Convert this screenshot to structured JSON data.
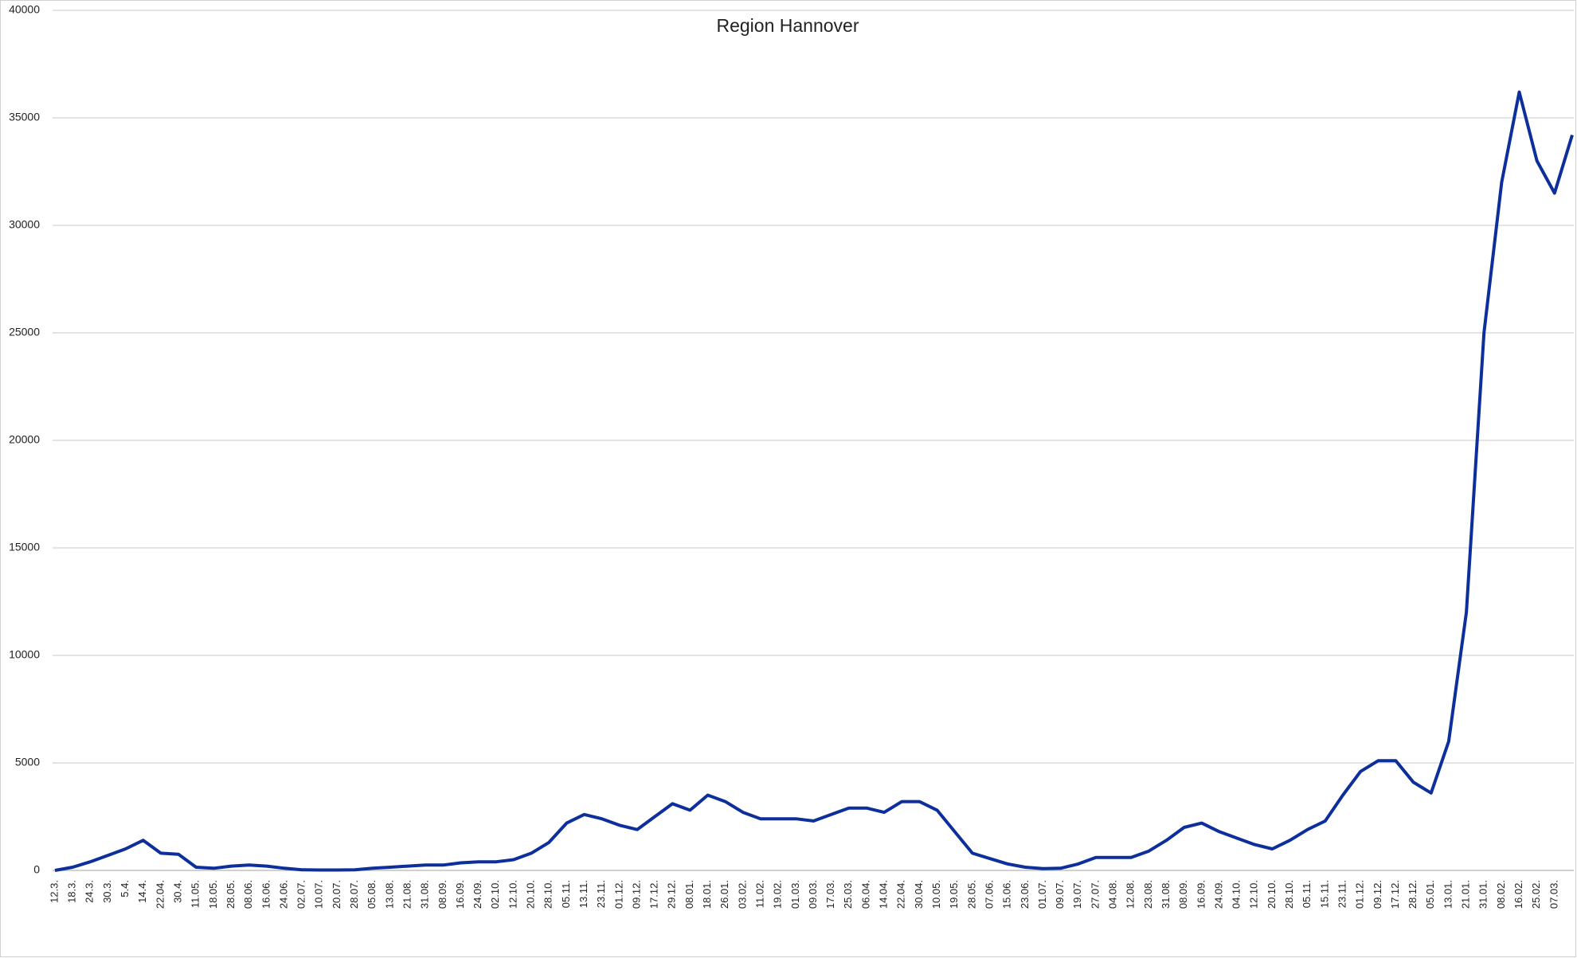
{
  "chart_data": {
    "type": "line",
    "title": "Region Hannover",
    "categories": [
      "12.3.",
      "18.3.",
      "24.3.",
      "30.3.",
      "5.4.",
      "14.4.",
      "22.04.",
      "30.4.",
      "11.05.",
      "18.05.",
      "28.05.",
      "08.06.",
      "16.06.",
      "24.06.",
      "02.07.",
      "10.07.",
      "20.07.",
      "28.07.",
      "05.08.",
      "13.08.",
      "21.08.",
      "31.08.",
      "08.09.",
      "16.09.",
      "24.09.",
      "02.10.",
      "12.10.",
      "20.10.",
      "28.10.",
      "05.11.",
      "13.11.",
      "23.11.",
      "01.12.",
      "09.12.",
      "17.12.",
      "29.12.",
      "08.01.",
      "18.01.",
      "26.01.",
      "03.02.",
      "11.02.",
      "19.02.",
      "01.03.",
      "09.03.",
      "17.03.",
      "25.03.",
      "06.04.",
      "14.04.",
      "22.04.",
      "30.04.",
      "10.05.",
      "19.05.",
      "28.05.",
      "07.06.",
      "15.06.",
      "23.06.",
      "01.07.",
      "09.07.",
      "19.07.",
      "27.07.",
      "04.08.",
      "12.08.",
      "23.08.",
      "31.08.",
      "08.09.",
      "16.09.",
      "24.09.",
      "04.10.",
      "12.10.",
      "20.10.",
      "28.10.",
      "05.11.",
      "15.11.",
      "23.11.",
      "01.12.",
      "09.12.",
      "17.12.",
      "28.12.",
      "05.01.",
      "13.01.",
      "21.01.",
      "31.01.",
      "08.02.",
      "16.02.",
      "25.02.",
      "07.03.",
      null
    ],
    "series": [
      {
        "name": "Region Hannover",
        "color": "#0d2f9c",
        "values": [
          0,
          150,
          400,
          700,
          1000,
          1400,
          800,
          750,
          150,
          100,
          200,
          250,
          200,
          100,
          30,
          20,
          20,
          30,
          100,
          150,
          200,
          250,
          250,
          350,
          400,
          400,
          500,
          800,
          1300,
          2200,
          2600,
          2400,
          2100,
          1900,
          2500,
          3100,
          2800,
          3500,
          3200,
          2700,
          2400,
          2400,
          2400,
          2300,
          2600,
          2900,
          2900,
          2700,
          3200,
          3200,
          2800,
          1800,
          800,
          550,
          300,
          150,
          80,
          100,
          300,
          600,
          600,
          600,
          900,
          1400,
          2000,
          2200,
          1800,
          1500,
          1200,
          1000,
          1400,
          1900,
          2300,
          3500,
          4600,
          5100,
          5100,
          4100,
          3600,
          6000,
          12000,
          25000,
          32000,
          36200,
          33000,
          31500,
          34200
        ]
      }
    ],
    "ylim": [
      0,
      40000
    ],
    "yticks": [
      0,
      5000,
      10000,
      15000,
      20000,
      25000,
      30000,
      35000,
      40000
    ],
    "grid": true
  }
}
